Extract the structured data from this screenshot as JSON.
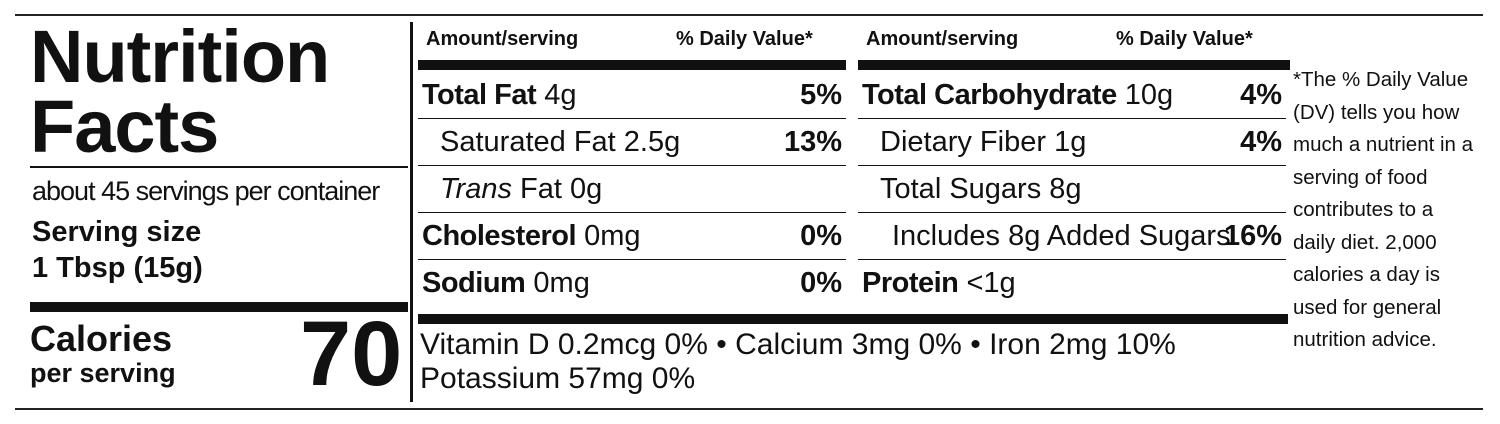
{
  "title_lines": [
    "Nutrition",
    "Facts"
  ],
  "servings": "about 45 servings per container",
  "serving_size_label": "Serving size",
  "serving_size": "1 Tbsp (15g)",
  "calories_label": "Calories",
  "calories_sublabel": "per serving",
  "calories": "70",
  "columns": [
    {
      "header_amount": "Amount/serving",
      "header_dv": "% Daily Value*",
      "rows": [
        {
          "name": "Total Fat",
          "amount": "4g",
          "dv": "5%"
        },
        {
          "name": "Saturated Fat",
          "amount": "2.5g",
          "dv": "13%"
        },
        {
          "name_italic": "Trans",
          "name": "Fat",
          "amount": "0g"
        },
        {
          "name": "Cholesterol",
          "amount": "0mg",
          "dv": "0%"
        },
        {
          "name": "Sodium",
          "amount": "0mg",
          "dv": "0%"
        }
      ]
    },
    {
      "header_amount": "Amount/serving",
      "header_dv": "% Daily Value*",
      "rows": [
        {
          "name": "Total Carbohydrate",
          "amount": "10g",
          "dv": "4%"
        },
        {
          "name": "Dietary Fiber",
          "amount": "1g",
          "dv": "4%"
        },
        {
          "name": "Total Sugars",
          "amount": "8g"
        },
        {
          "name": "Includes 8g Added Sugars",
          "dv": "16%"
        },
        {
          "name": "Protein",
          "amount": "<1g"
        }
      ]
    }
  ],
  "micronutrients": {
    "line1": [
      "Vitamin D 0.2mcg 0%",
      "Calcium 3mg 0%",
      "Iron 2mg 10%"
    ],
    "separator": "•",
    "line2": "Potassium 57mg 0%"
  },
  "footnote": "*The % Daily Value (DV) tells you how much a nutrient in a serving of food contributes to a daily diet. 2,000 calories a day is used for general nutrition advice."
}
